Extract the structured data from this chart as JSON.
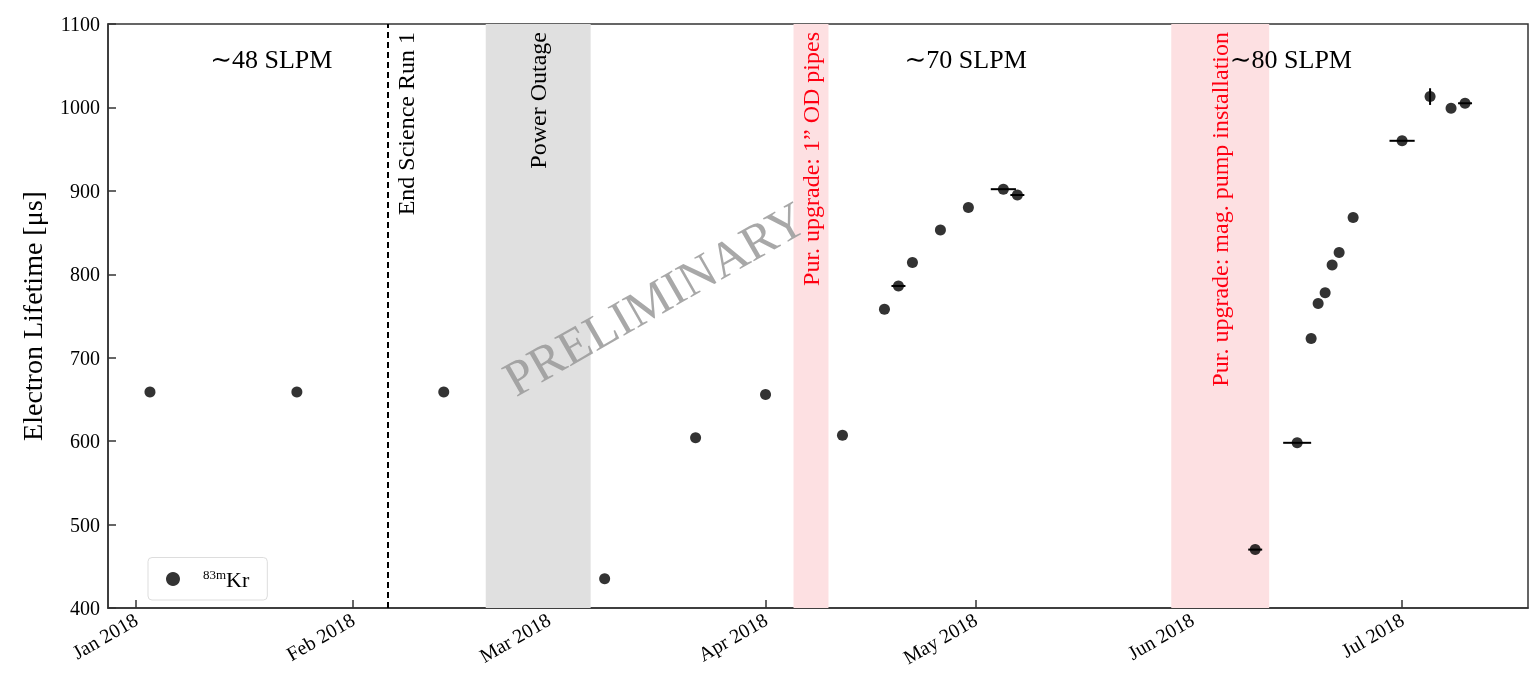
{
  "chart_data": {
    "type": "scatter",
    "ylabel": "Electron Lifetime [μs]",
    "xlim": [
      "2017-12-28",
      "2018-07-19"
    ],
    "xticks": [
      {
        "value": "2018-01-01",
        "label": "Jan 2018"
      },
      {
        "value": "2018-02-01",
        "label": "Feb 2018"
      },
      {
        "value": "2018-03-01",
        "label": "Mar 2018"
      },
      {
        "value": "2018-04-01",
        "label": "Apr 2018"
      },
      {
        "value": "2018-05-01",
        "label": "May 2018"
      },
      {
        "value": "2018-06-01",
        "label": "Jun 2018"
      },
      {
        "value": "2018-07-01",
        "label": "Jul 2018"
      }
    ],
    "ylim": [
      400,
      1100
    ],
    "yticks": [
      400,
      500,
      600,
      700,
      800,
      900,
      1000,
      1100
    ],
    "marker": "circle",
    "legend": "bottom left",
    "series": [
      {
        "name": "$^{83m}$Kr",
        "color": "#000000",
        "x": [
          "2018-01-03",
          "2018-01-24",
          "2018-02-14",
          "2018-03-09",
          "2018-03-22",
          "2018-04-01",
          "2018-04-12",
          "2018-04-18",
          "2018-04-20",
          "2018-04-22",
          "2018-04-26",
          "2018-04-30",
          "2018-05-05",
          "2018-05-07",
          "2018-06-10",
          "2018-06-16",
          "2018-06-18",
          "2018-06-19",
          "2018-06-20",
          "2018-06-21",
          "2018-06-22",
          "2018-06-24",
          "2018-07-01",
          "2018-07-05",
          "2018-07-08",
          "2018-07-10"
        ],
        "values": [
          659,
          659,
          659,
          435,
          604,
          656,
          607,
          758,
          786,
          814,
          853,
          880,
          902,
          895,
          470,
          598,
          723,
          765,
          778,
          811,
          826,
          868,
          960,
          1013,
          999,
          1005
        ],
        "errors": [
          null,
          null,
          null,
          null,
          null,
          null,
          null,
          null,
          null,
          null,
          null,
          null,
          null,
          null,
          null,
          null,
          null,
          null,
          null,
          null,
          null,
          null,
          null,
          10,
          null,
          null
        ],
        "xerrors": [
          null,
          null,
          null,
          null,
          null,
          null,
          null,
          null,
          1,
          null,
          null,
          null,
          1.8,
          1,
          1,
          2,
          null,
          null,
          null,
          null,
          null,
          null,
          1.8,
          null,
          null,
          1
        ]
      }
    ],
    "ref_lines": [
      {
        "axis": "x",
        "value": "2018-02-06",
        "label": "End Science Run 1",
        "color": "#000000",
        "line_style": "dashed"
      }
    ],
    "bands": [
      {
        "axis": "x",
        "from": "2018-02-20",
        "to": "2018-03-07",
        "label": "Power Outage",
        "color": "#e0e0e0"
      },
      {
        "axis": "x",
        "from": "2018-04-05",
        "to": "2018-04-10",
        "label": "Pur. upgrade: 1” OD pipes",
        "color": "#fde0e2"
      },
      {
        "axis": "x",
        "from": "2018-05-29",
        "to": "2018-06-12",
        "label": "Pur. upgrade: mag. pump installation",
        "color": "#fde0e2"
      }
    ],
    "annotations": [
      "∼48 SLPM",
      "∼70 SLPM",
      "∼80 SLPM",
      "PRELIMINARY"
    ]
  }
}
